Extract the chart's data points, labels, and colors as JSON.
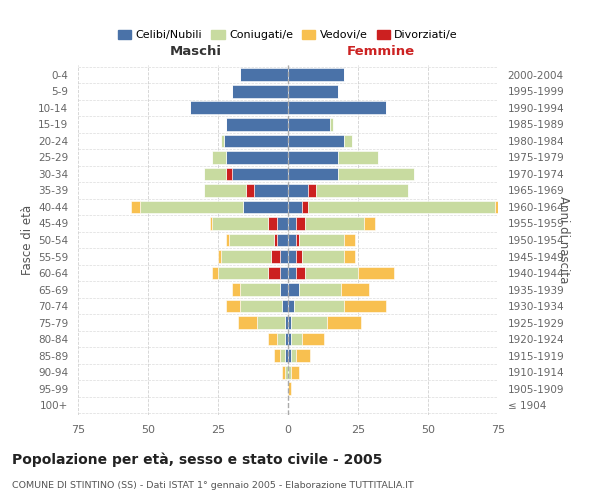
{
  "age_groups": [
    "100+",
    "95-99",
    "90-94",
    "85-89",
    "80-84",
    "75-79",
    "70-74",
    "65-69",
    "60-64",
    "55-59",
    "50-54",
    "45-49",
    "40-44",
    "35-39",
    "30-34",
    "25-29",
    "20-24",
    "15-19",
    "10-14",
    "5-9",
    "0-4"
  ],
  "birth_years": [
    "≤ 1904",
    "1905-1909",
    "1910-1914",
    "1915-1919",
    "1920-1924",
    "1925-1929",
    "1930-1934",
    "1935-1939",
    "1940-1944",
    "1945-1949",
    "1950-1954",
    "1955-1959",
    "1960-1964",
    "1965-1969",
    "1970-1974",
    "1975-1979",
    "1980-1984",
    "1985-1989",
    "1990-1994",
    "1995-1999",
    "2000-2004"
  ],
  "maschi": {
    "celibi": [
      0,
      0,
      0,
      1,
      1,
      1,
      2,
      3,
      3,
      3,
      4,
      4,
      16,
      12,
      20,
      22,
      23,
      22,
      35,
      20,
      17
    ],
    "coniugati": [
      0,
      0,
      1,
      2,
      3,
      10,
      15,
      14,
      18,
      18,
      16,
      20,
      37,
      15,
      8,
      5,
      1,
      0,
      0,
      0,
      0
    ],
    "vedovi": [
      0,
      0,
      1,
      2,
      3,
      7,
      5,
      3,
      2,
      1,
      1,
      1,
      3,
      0,
      0,
      0,
      0,
      0,
      0,
      0,
      0
    ],
    "divorziati": [
      0,
      0,
      0,
      0,
      0,
      0,
      0,
      0,
      4,
      3,
      1,
      3,
      0,
      3,
      2,
      0,
      0,
      0,
      0,
      0,
      0
    ]
  },
  "femmine": {
    "nubili": [
      0,
      0,
      0,
      1,
      1,
      1,
      2,
      4,
      3,
      3,
      3,
      3,
      5,
      7,
      18,
      18,
      20,
      15,
      35,
      18,
      20
    ],
    "coniugate": [
      0,
      0,
      1,
      2,
      4,
      13,
      18,
      15,
      19,
      15,
      16,
      21,
      67,
      33,
      27,
      14,
      3,
      1,
      0,
      0,
      0
    ],
    "vedove": [
      0,
      1,
      3,
      5,
      8,
      12,
      15,
      10,
      13,
      4,
      4,
      4,
      2,
      0,
      0,
      0,
      0,
      0,
      0,
      0,
      0
    ],
    "divorziate": [
      0,
      0,
      0,
      0,
      0,
      0,
      0,
      0,
      3,
      2,
      1,
      3,
      2,
      3,
      0,
      0,
      0,
      0,
      0,
      0,
      0
    ]
  },
  "colors": {
    "celibi": "#4a72a8",
    "coniugati": "#c8dba0",
    "vedovi": "#f8c050",
    "divorziati": "#cc2020"
  },
  "xlim": 75,
  "title": "Popolazione per età, sesso e stato civile - 2005",
  "subtitle": "COMUNE DI STINTINO (SS) - Dati ISTAT 1° gennaio 2005 - Elaborazione TUTTITALIA.IT",
  "ylabel_left": "Fasce di età",
  "ylabel_right": "Anni di nascita",
  "xlabel_maschi": "Maschi",
  "xlabel_femmine": "Femmine",
  "legend_labels": [
    "Celibi/Nubili",
    "Coniugati/e",
    "Vedovi/e",
    "Divorziati/e"
  ],
  "bg_color": "#ffffff",
  "grid_color": "#cccccc"
}
